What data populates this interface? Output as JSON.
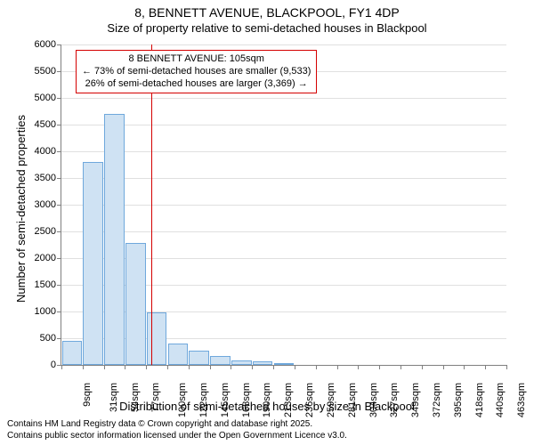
{
  "title": {
    "line1": "8, BENNETT AVENUE, BLACKPOOL, FY1 4DP",
    "line2": "Size of property relative to semi-detached houses in Blackpool",
    "fontsize_line1": 14,
    "fontsize_line2": 13
  },
  "chart": {
    "type": "histogram",
    "ylabel": "Number of semi-detached properties",
    "xlabel": "Distribution of semi-detached houses by size in Blackpool",
    "label_fontsize": 13,
    "tick_fontsize": 11,
    "ylim": [
      0,
      6000
    ],
    "ytick_step": 500,
    "background_color": "#ffffff",
    "grid_color": "#e0e0e0",
    "axis_color": "#808080",
    "bar_fill": "#cfe2f3",
    "bar_border": "#6fa8dc",
    "bar_width": 0.95,
    "x_tick_suffix": "sqm",
    "categories": [
      9,
      31,
      54,
      77,
      100,
      122,
      145,
      168,
      190,
      213,
      236,
      259,
      281,
      304,
      327,
      349,
      372,
      395,
      418,
      440,
      463
    ],
    "values": [
      450,
      3800,
      4700,
      2280,
      990,
      400,
      260,
      160,
      80,
      60,
      40,
      0,
      0,
      0,
      0,
      0,
      0,
      0,
      0,
      0,
      0
    ],
    "annotation": {
      "marker_x_value": 105,
      "marker_color": "#d40000",
      "box_border": "#d40000",
      "box_bg": "#ffffff",
      "lines": [
        "8 BENNETT AVENUE: 105sqm",
        "← 73% of semi-detached houses are smaller (9,533)",
        "26% of semi-detached houses are larger (3,369) →"
      ]
    }
  },
  "footer": {
    "line1": "Contains HM Land Registry data © Crown copyright and database right 2025.",
    "line2": "Contains public sector information licensed under the Open Government Licence v3.0."
  }
}
